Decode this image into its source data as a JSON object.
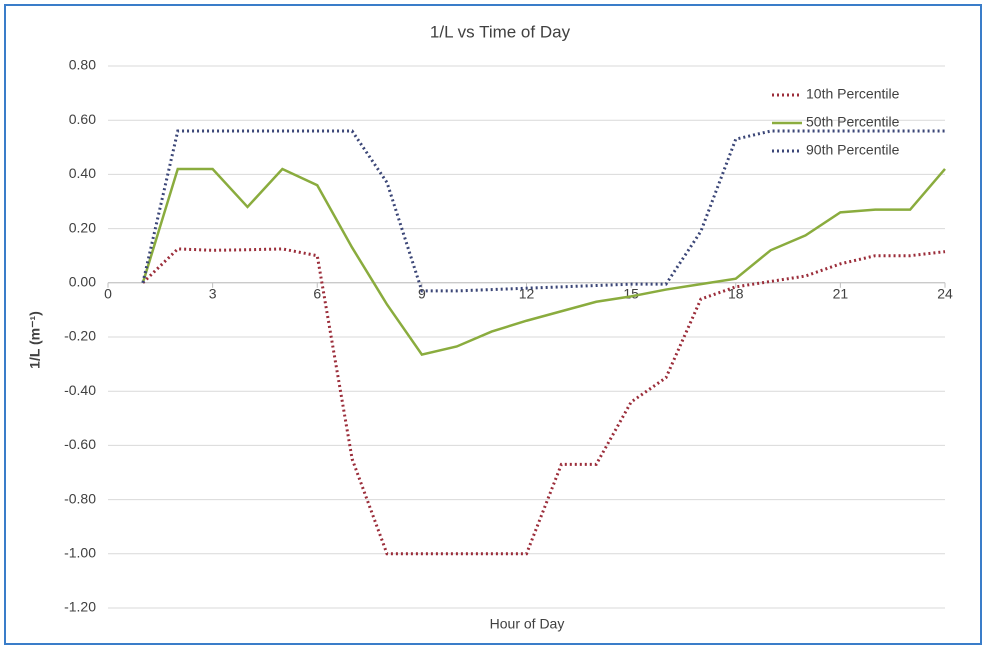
{
  "chart_data": {
    "type": "line",
    "title": "1/L vs Time of Day",
    "x_label": "Hour of Day",
    "y_label": "1/L (m⁻¹)",
    "x": [
      1,
      2,
      3,
      4,
      5,
      6,
      7,
      8,
      9,
      10,
      11,
      12,
      13,
      14,
      15,
      16,
      17,
      18,
      19,
      20,
      21,
      22,
      23,
      24
    ],
    "series": [
      {
        "name": "10th Percentile",
        "color": "#9b2d3a",
        "dash": "dotted",
        "values": [
          0,
          0.125,
          0.12,
          0.122,
          0.125,
          0.1,
          -0.65,
          -1.0,
          -1.0,
          -1.0,
          -1.0,
          -1.0,
          -0.67,
          -0.67,
          -0.44,
          -0.35,
          -0.06,
          -0.015,
          0.005,
          0.025,
          0.07,
          0.1,
          0.1,
          0.115
        ]
      },
      {
        "name": "50th Percentile",
        "color": "#8aac3e",
        "dash": "solid",
        "values": [
          0,
          0.42,
          0.42,
          0.28,
          0.42,
          0.36,
          0.13,
          -0.08,
          -0.265,
          -0.235,
          -0.18,
          -0.14,
          -0.105,
          -0.07,
          -0.05,
          -0.025,
          -0.005,
          0.015,
          0.12,
          0.175,
          0.26,
          0.27,
          0.27,
          0.42
        ]
      },
      {
        "name": "90th Percentile",
        "color": "#3b4677",
        "dash": "dotted",
        "values": [
          0,
          0.56,
          0.56,
          0.56,
          0.56,
          0.56,
          0.56,
          0.37,
          -0.03,
          -0.03,
          -0.025,
          -0.02,
          -0.015,
          -0.01,
          -0.005,
          -0.005,
          0.19,
          0.53,
          0.56,
          0.56,
          0.56,
          0.56,
          0.56,
          0.56
        ]
      }
    ],
    "xlim": [
      0,
      24
    ],
    "xticks": [
      0,
      3,
      6,
      9,
      12,
      15,
      18,
      21,
      24
    ],
    "ylim": [
      -1.2,
      0.8
    ],
    "yticks": [
      {
        "value": -1.2,
        "label": "-1.20"
      },
      {
        "value": -1.0,
        "label": "-1.00"
      },
      {
        "value": -0.8,
        "label": "-0.80"
      },
      {
        "value": -0.6,
        "label": "-0.60"
      },
      {
        "value": -0.4,
        "label": "-0.40"
      },
      {
        "value": -0.2,
        "label": "-0.20"
      },
      {
        "value": 0,
        "label": "0.00"
      },
      {
        "value": 0.2,
        "label": "0.20"
      },
      {
        "value": 0.4,
        "label": "0.40"
      },
      {
        "value": 0.6,
        "label": "0.60"
      },
      {
        "value": 0.8,
        "label": "0.80"
      }
    ],
    "grid": true,
    "legend": "top-right"
  }
}
